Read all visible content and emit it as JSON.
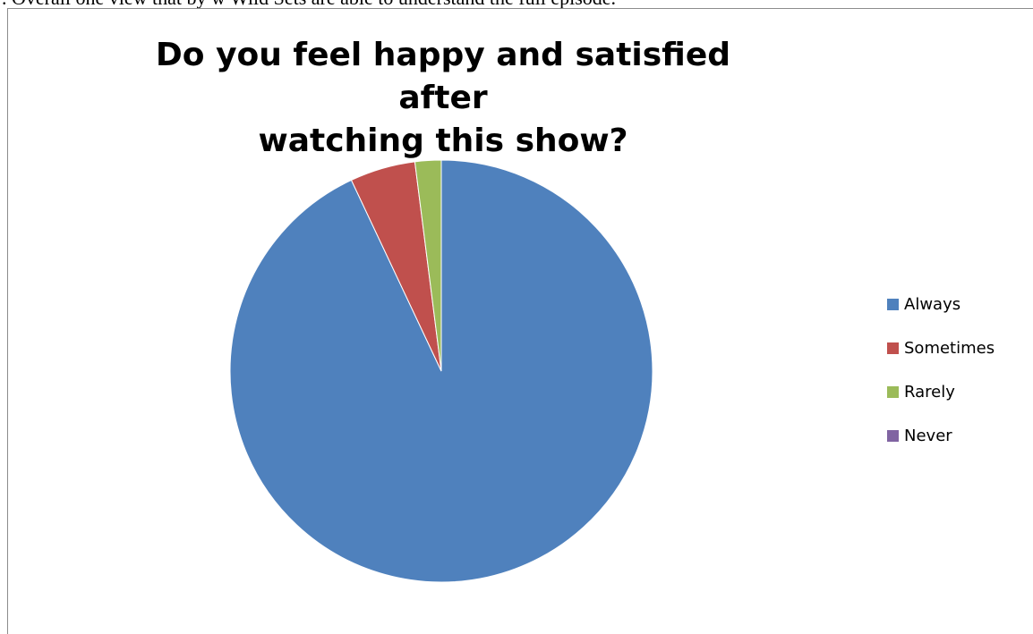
{
  "header_text": ". Overall one view that by w Wild Sets are able to understand the full episode.",
  "chart_data": {
    "type": "pie",
    "title": "Do you feel happy and satisfied after watching this show?",
    "title_lines": [
      "Do you feel happy and satisfied after",
      "watching this show?"
    ],
    "categories": [
      "Always",
      "Sometimes",
      "Rarely",
      "Never"
    ],
    "values": [
      93,
      5,
      2,
      0
    ],
    "colors": [
      "#4F81BD",
      "#C0504D",
      "#9BBB59",
      "#8064A2"
    ],
    "legend_position": "right",
    "start_angle_deg": 0,
    "direction": "clockwise"
  }
}
